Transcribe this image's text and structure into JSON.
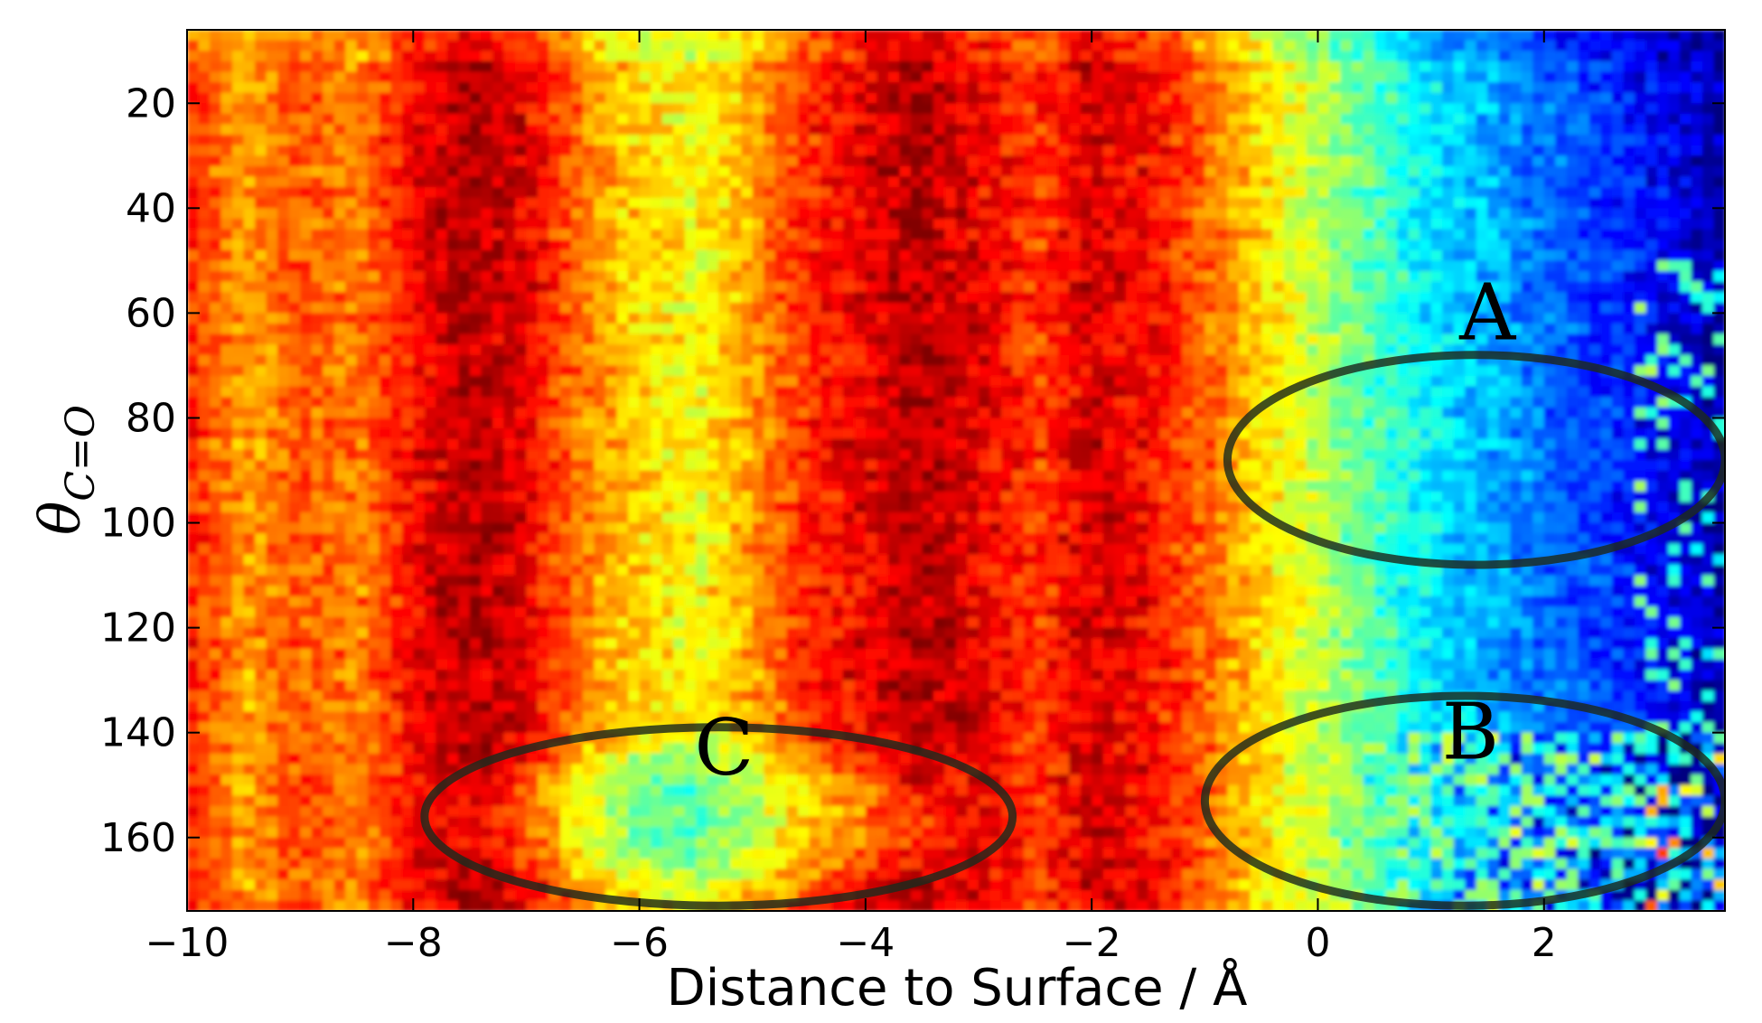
{
  "chart_data": {
    "type": "heatmap",
    "colormap": "jet",
    "xlabel": "Distance to Surface / Å",
    "ylabel": {
      "main": "θ",
      "subscript": "C=O"
    },
    "xlim": [
      -10,
      3.6
    ],
    "ylim": [
      174,
      6
    ],
    "x_ticks": [
      -10,
      -8,
      -6,
      -4,
      -2,
      0,
      2
    ],
    "x_tick_labels": [
      "−10",
      "−8",
      "−6",
      "−4",
      "−2",
      "0",
      "2"
    ],
    "y_ticks": [
      20,
      40,
      60,
      80,
      100,
      120,
      140,
      160
    ],
    "y_tick_labels": [
      "20",
      "40",
      "60",
      "80",
      "100",
      "120",
      "140",
      "160"
    ],
    "grid": false,
    "annotations": [
      {
        "label": "A",
        "shape": "ellipse",
        "center": [
          1.4,
          88
        ],
        "radii": [
          2.2,
          20
        ]
      },
      {
        "label": "B",
        "shape": "ellipse",
        "center": [
          1.3,
          153
        ],
        "radii": [
          2.3,
          20
        ]
      },
      {
        "label": "C",
        "shape": "ellipse",
        "center": [
          -5.3,
          156
        ],
        "radii": [
          2.6,
          17
        ]
      }
    ],
    "intensity_profile": {
      "description_x": "normalized density along distance axis (0 = dark blue, 1 = dark red)",
      "x": [
        -10,
        -9.5,
        -9,
        -8.5,
        -8,
        -7.5,
        -7,
        -6.5,
        -6,
        -5.5,
        -5,
        -4.5,
        -4,
        -3.5,
        -3,
        -2.5,
        -2,
        -1.5,
        -1,
        -0.5,
        0,
        0.5,
        1,
        1.5,
        2,
        2.5,
        3,
        3.5
      ],
      "level": [
        0.85,
        0.72,
        0.8,
        0.75,
        0.88,
        0.95,
        0.9,
        0.75,
        0.66,
        0.62,
        0.72,
        0.84,
        0.9,
        0.95,
        0.9,
        0.82,
        0.92,
        0.88,
        0.78,
        0.66,
        0.56,
        0.45,
        0.36,
        0.3,
        0.24,
        0.18,
        0.12,
        0.05
      ]
    }
  },
  "colors": {
    "ellipse_stroke": "#1c2a1c",
    "axis": "#000000"
  }
}
